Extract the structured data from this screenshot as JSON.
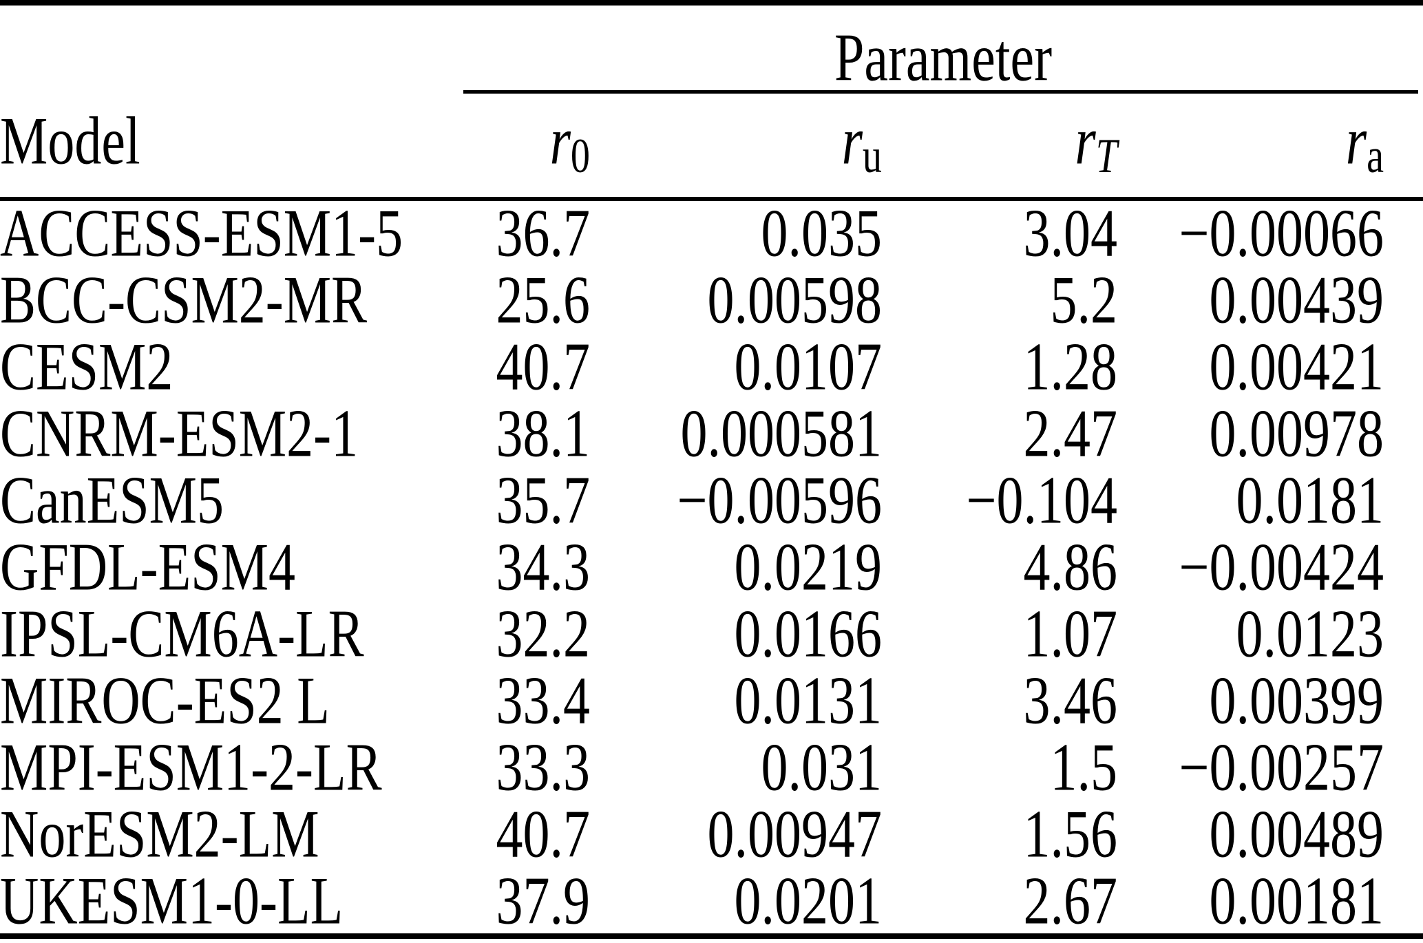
{
  "table": {
    "group_header": "Parameter",
    "model_header": "Model",
    "param_headers": [
      {
        "base": "r",
        "sub": "0",
        "italic_sub": false,
        "key": "r0"
      },
      {
        "base": "r",
        "sub": "u",
        "italic_sub": false,
        "key": "ru"
      },
      {
        "base": "r",
        "sub": "T",
        "italic_sub": true,
        "key": "rT"
      },
      {
        "base": "r",
        "sub": "a",
        "italic_sub": false,
        "key": "ra"
      }
    ],
    "rows": [
      {
        "model": "ACCESS-ESM1-5",
        "values": [
          "36.7",
          "0.035",
          "3.04",
          "−0.00066"
        ]
      },
      {
        "model": "BCC-CSM2-MR",
        "values": [
          "25.6",
          "0.00598",
          "5.2",
          "0.00439"
        ]
      },
      {
        "model": "CESM2",
        "values": [
          "40.7",
          "0.0107",
          "1.28",
          "0.00421"
        ]
      },
      {
        "model": "CNRM-ESM2-1",
        "values": [
          "38.1",
          "0.000581",
          "2.47",
          "0.00978"
        ]
      },
      {
        "model": "CanESM5",
        "values": [
          "35.7",
          "−0.00596",
          "−0.104",
          "0.0181"
        ]
      },
      {
        "model": "GFDL-ESM4",
        "values": [
          "34.3",
          "0.0219",
          "4.86",
          "−0.00424"
        ]
      },
      {
        "model": "IPSL-CM6A-LR",
        "values": [
          "32.2",
          "0.0166",
          "1.07",
          "0.0123"
        ]
      },
      {
        "model": "MIROC-ES2 L",
        "values": [
          "33.4",
          "0.0131",
          "3.46",
          "0.00399"
        ]
      },
      {
        "model": "MPI-ESM1-2-LR",
        "values": [
          "33.3",
          "0.031",
          "1.5",
          "−0.00257"
        ]
      },
      {
        "model": "NorESM2-LM",
        "values": [
          "40.7",
          "0.00947",
          "1.56",
          "0.00489"
        ]
      },
      {
        "model": "UKESM1-0-LL",
        "values": [
          "37.9",
          "0.0201",
          "2.67",
          "0.00181"
        ]
      }
    ]
  },
  "colors": {
    "background": "#ffffff",
    "text": "#000000",
    "rules": "#000000"
  }
}
